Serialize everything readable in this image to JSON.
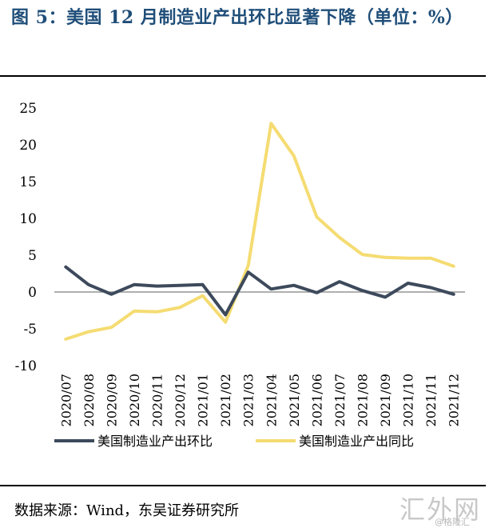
{
  "figure": {
    "title": "图 5：美国 12 月制造业产出环比显著下降（单位：%）"
  },
  "chart_data": {
    "type": "line",
    "title": "图 5：美国 12 月制造业产出环比显著下降（单位：%）",
    "xlabel": "",
    "ylabel": "",
    "ylim": [
      -10,
      25
    ],
    "yticks": [
      -10,
      -5,
      0,
      5,
      10,
      15,
      20,
      25
    ],
    "categories": [
      "2020/07",
      "2020/08",
      "2020/09",
      "2020/10",
      "2020/11",
      "2020/12",
      "2021/01",
      "2021/02",
      "2021/03",
      "2021/04",
      "2021/05",
      "2021/06",
      "2021/07",
      "2021/08",
      "2021/09",
      "2021/10",
      "2021/11",
      "2021/12"
    ],
    "series": [
      {
        "name": "美国制造业产出环比",
        "color": "#3d4a5c",
        "values": [
          3.4,
          1.0,
          -0.3,
          1.0,
          0.8,
          0.9,
          1.0,
          -3.1,
          2.7,
          0.4,
          0.9,
          -0.1,
          1.4,
          0.2,
          -0.7,
          1.2,
          0.6,
          -0.3
        ]
      },
      {
        "name": "美国制造业产出同比",
        "color": "#f5dc72",
        "values": [
          -6.4,
          -5.4,
          -4.8,
          -2.6,
          -2.7,
          -2.1,
          -0.5,
          -4.1,
          3.6,
          22.9,
          18.5,
          10.2,
          7.4,
          5.1,
          4.7,
          4.6,
          4.6,
          3.5
        ]
      }
    ],
    "legend_position": "bottom",
    "grid": false
  },
  "footer": {
    "source": "数据来源：Wind，东吴证券研究所",
    "watermark": "汇外网",
    "watermark_small": "@格隆汇"
  }
}
